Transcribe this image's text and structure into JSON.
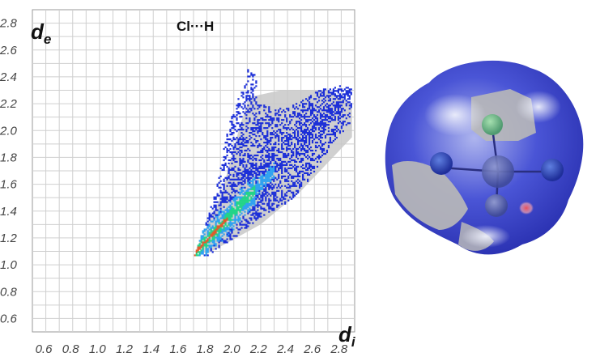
{
  "chart_data": {
    "type": "heatmap",
    "title": "Cl···H",
    "xlabel": {
      "symbol": "d",
      "subscript": "i"
    },
    "ylabel": {
      "symbol": "d",
      "subscript": "e"
    },
    "xlim": [
      0.5,
      2.9
    ],
    "ylim": [
      0.5,
      2.9
    ],
    "grid": true,
    "x_tick_labels": [
      "0.6",
      "0.8",
      "1.0",
      "1.2",
      "1.4",
      "1.6",
      "1.8",
      "2.0",
      "2.2",
      "2.4",
      "2.6",
      "2.8"
    ],
    "y_tick_labels": [
      "0.6",
      "0.8",
      "1.0",
      "1.2",
      "1.4",
      "1.6",
      "1.8",
      "2.0",
      "2.2",
      "2.4",
      "2.6",
      "2.8"
    ],
    "x_ticks": [
      0.6,
      0.8,
      1.0,
      1.2,
      1.4,
      1.6,
      1.8,
      2.0,
      2.2,
      2.4,
      2.6,
      2.8
    ],
    "y_ticks": [
      0.6,
      0.8,
      1.0,
      1.2,
      1.4,
      1.6,
      1.8,
      2.0,
      2.2,
      2.4,
      2.6,
      2.8
    ],
    "background_region": [
      [
        1.72,
        1.12
      ],
      [
        1.9,
        1.5
      ],
      [
        2.05,
        2.05
      ],
      [
        2.12,
        2.25
      ],
      [
        2.35,
        2.3
      ],
      [
        2.7,
        2.3
      ],
      [
        2.88,
        2.2
      ],
      [
        2.88,
        1.95
      ],
      [
        2.5,
        1.55
      ],
      [
        2.2,
        1.3
      ],
      [
        1.8,
        1.08
      ]
    ],
    "highlighted_region": [
      [
        1.7,
        1.06
      ],
      [
        1.78,
        1.3
      ],
      [
        1.88,
        1.62
      ],
      [
        1.92,
        1.86
      ],
      [
        1.96,
        2.05
      ],
      [
        2.06,
        2.32
      ],
      [
        2.1,
        2.45
      ],
      [
        2.16,
        2.4
      ],
      [
        2.18,
        2.2
      ],
      [
        2.3,
        2.15
      ],
      [
        2.48,
        2.2
      ],
      [
        2.6,
        2.28
      ],
      [
        2.78,
        2.34
      ],
      [
        2.88,
        2.3
      ],
      [
        2.86,
        2.05
      ],
      [
        2.7,
        1.85
      ],
      [
        2.55,
        1.62
      ],
      [
        2.4,
        1.45
      ],
      [
        2.2,
        1.35
      ],
      [
        1.98,
        1.18
      ],
      [
        1.8,
        1.06
      ]
    ],
    "hotspot_ridge": [
      [
        1.72,
        1.1
      ],
      [
        1.82,
        1.2
      ],
      [
        1.92,
        1.32
      ],
      [
        2.02,
        1.42
      ],
      [
        2.1,
        1.52
      ]
    ],
    "colors": {
      "sparse": "#1c2fd8",
      "medium": "#2fa2f0",
      "dense": "#22d488",
      "peak": "#e05a2a",
      "background": "#c8c8c8"
    }
  },
  "surface": {
    "colors": {
      "base": "#4a55d6",
      "dark": "#2a2fb0",
      "light": "#d9dcf4",
      "contact_red": "#e8505a",
      "hidden": "#b8b8b8"
    }
  }
}
